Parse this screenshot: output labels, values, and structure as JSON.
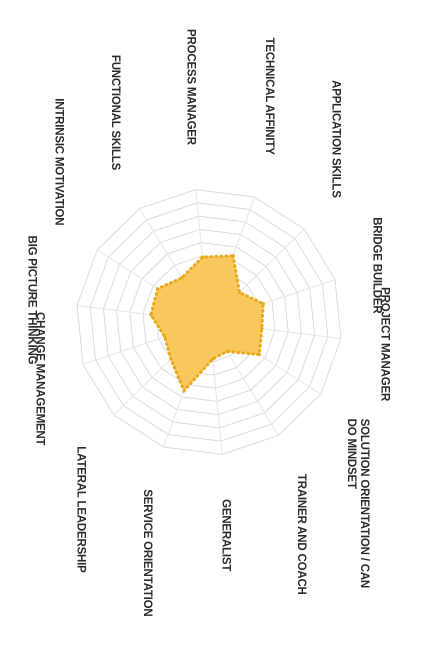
{
  "chart_data": {
    "type": "radar",
    "orientation": "rotated-90-clockwise",
    "categories": [
      "TECHNICAL AFFINITY",
      "APPLICATION SKILLS",
      "BRIDGE BUILDER",
      "PROJECT MANAGER",
      "SOLUTION ORIENTATION / CAN DO MINDSET",
      "TRAINER AND COACH",
      "GENERALIST",
      "SERVICE ORIENTATION",
      "LATERAL LEADERSHIP",
      "CHANGE MANAGEMENT",
      "BIG PICTURE THINKING",
      "INTRINSIC MOTIVATION",
      "FUNCTIONAL SKILLS",
      "PROCESS MANAGER"
    ],
    "values": [
      5.3,
      3.2,
      4.3,
      4.0,
      4.5,
      2.6,
      2.8,
      5.5,
      4.0,
      3.5,
      4.4,
      4.6,
      3.9,
      4.9
    ],
    "rlim": [
      0,
      10
    ],
    "rings": 10,
    "fill_color": "#f8c85e",
    "line_color": "#e9a91a",
    "grid_color": "#dcdcdc"
  }
}
